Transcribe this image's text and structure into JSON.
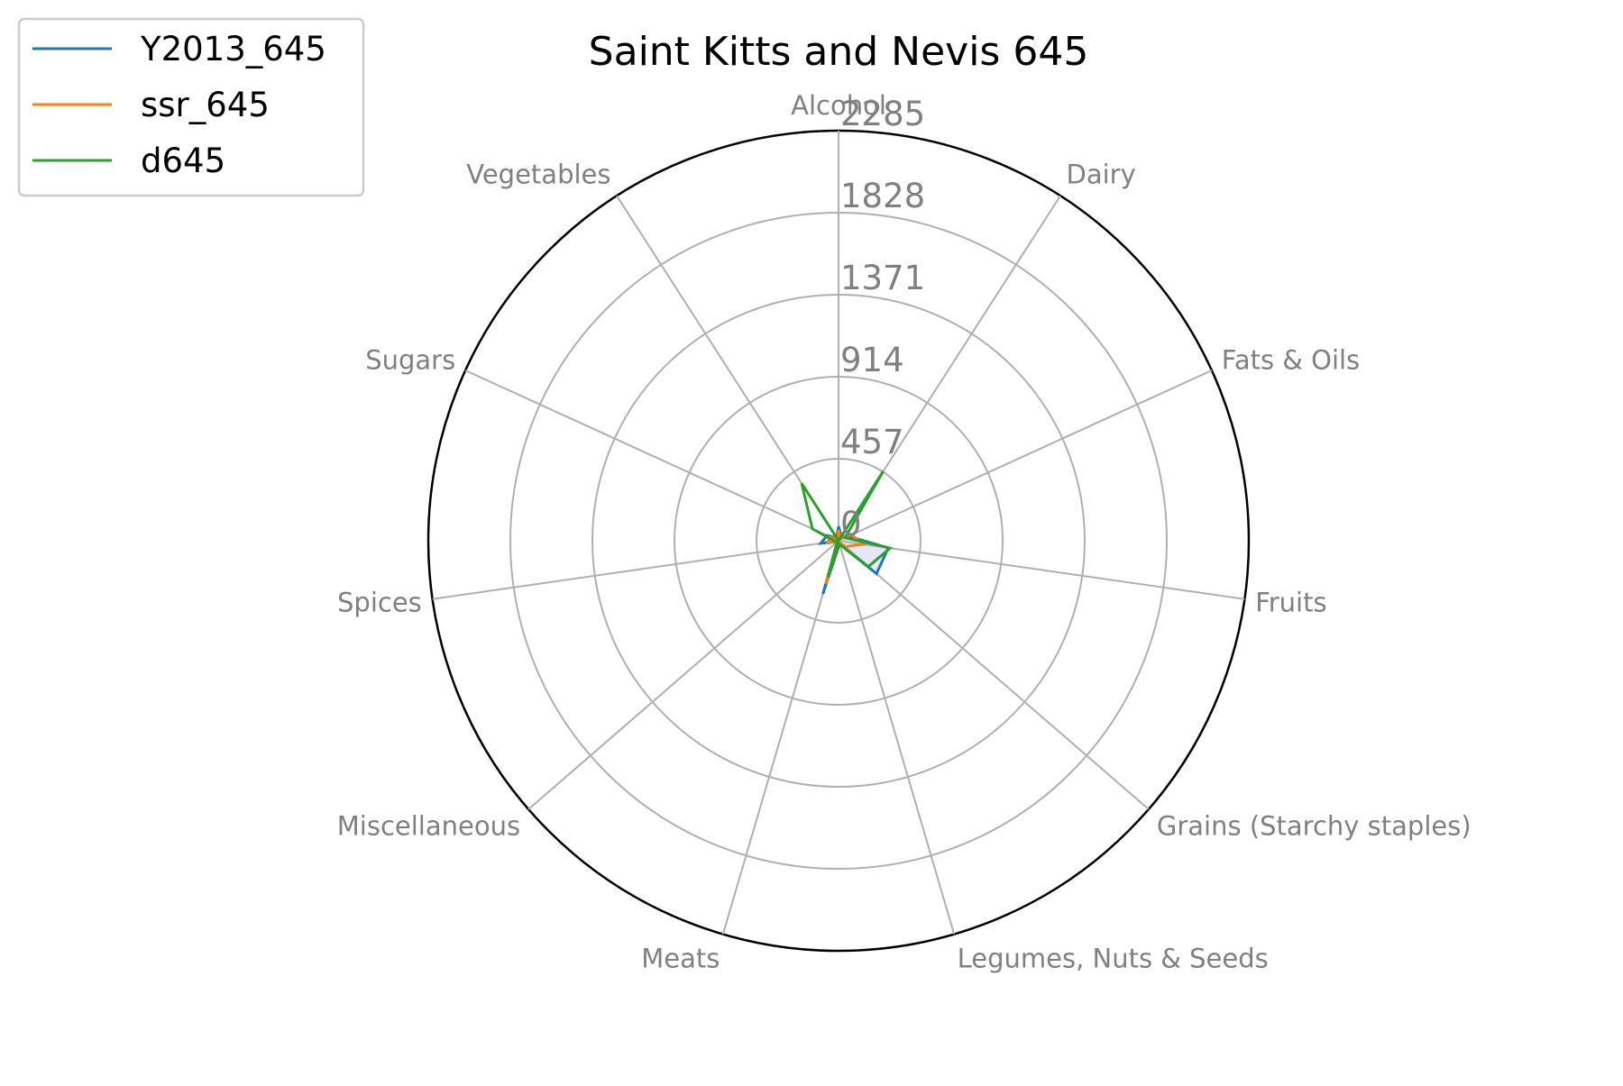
{
  "chart_data": {
    "type": "radar",
    "title": "Saint Kitts and Nevis 645",
    "categories": [
      "Alcohol",
      "Dairy",
      "Fats & Oils",
      "Fruits",
      "Grains (Starchy staples)",
      "Legumes, Nuts & Seeds",
      "Meats",
      "Miscellaneous",
      "Spices",
      "Sugars",
      "Vegetables"
    ],
    "radial_ticks": [
      "0",
      "457",
      "914",
      "1371",
      "1828",
      "2285"
    ],
    "rlim": [
      0,
      2285
    ],
    "grid": true,
    "legend_position": "top-left",
    "series": [
      {
        "name": "Y2013_645",
        "color": "#1f77b4",
        "values": [
          80,
          30,
          60,
          280,
          280,
          20,
          310,
          10,
          100,
          70,
          20
        ],
        "fill": "#e6e6fa"
      },
      {
        "name": "ssr_645",
        "color": "#ff7f0e",
        "values": [
          60,
          20,
          80,
          140,
          50,
          10,
          250,
          10,
          60,
          50,
          10
        ]
      },
      {
        "name": "d645",
        "color": "#2ca02c",
        "values": [
          0,
          460,
          40,
          290,
          220,
          20,
          210,
          10,
          20,
          160,
          380
        ]
      }
    ]
  }
}
